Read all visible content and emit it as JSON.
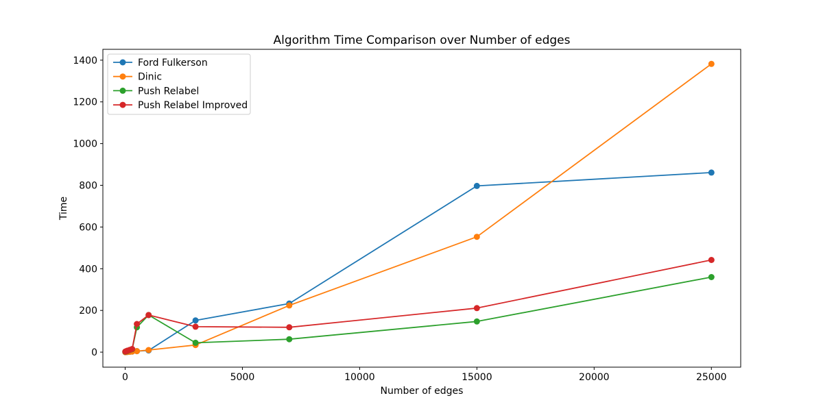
{
  "chart_data": {
    "type": "line",
    "title": "Algorithm Time Comparison over Number of edges",
    "xlabel": "Number of edges",
    "ylabel": "Time",
    "xlim": [
      -950,
      26250
    ],
    "ylim": [
      -72,
      1452
    ],
    "xticks": [
      0,
      5000,
      10000,
      15000,
      20000,
      25000
    ],
    "yticks": [
      0,
      200,
      400,
      600,
      800,
      1000,
      1200,
      1400
    ],
    "grid": false,
    "legend_position": "top-left",
    "x": [
      10,
      50,
      100,
      200,
      300,
      500,
      1000,
      3000,
      7000,
      15000,
      25000
    ],
    "series": [
      {
        "name": "Ford Fulkerson",
        "color": "#1f77b4",
        "values": [
          0,
          1,
          1,
          2,
          3,
          5,
          8,
          152,
          233,
          797,
          861
        ]
      },
      {
        "name": "Dinic",
        "color": "#ff7f0e",
        "values": [
          0,
          1,
          1,
          2,
          3,
          5,
          10,
          34,
          224,
          553,
          1382
        ]
      },
      {
        "name": "Push Relabel",
        "color": "#2ca02c",
        "values": [
          2,
          4,
          6,
          10,
          14,
          119,
          178,
          45,
          62,
          147,
          360
        ]
      },
      {
        "name": "Push Relabel Improved",
        "color": "#d62728",
        "values": [
          3,
          5,
          7,
          11,
          15,
          135,
          178,
          122,
          119,
          211,
          442
        ]
      }
    ]
  }
}
